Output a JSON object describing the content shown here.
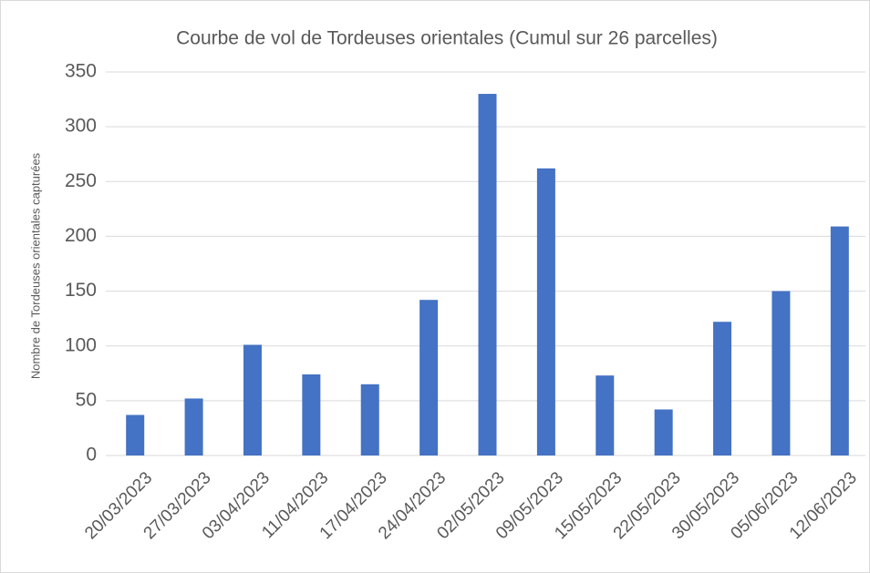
{
  "chart_data": {
    "type": "bar",
    "title": "Courbe de vol de Tordeuses orientales (Cumul sur 26 parcelles)",
    "y_label": "Nombre de Tordeuses orientales capturées",
    "categories": [
      "20/03/2023",
      "27/03/2023",
      "03/04/2023",
      "11/04/2023",
      "17/04/2023",
      "24/04/2023",
      "02/05/2023",
      "09/05/2023",
      "15/05/2023",
      "22/05/2023",
      "30/05/2023",
      "05/06/2023",
      "12/06/2023"
    ],
    "values": [
      37,
      52,
      101,
      74,
      65,
      142,
      330,
      262,
      73,
      42,
      122,
      150,
      209
    ],
    "color": "#4472c4",
    "ylim": [
      0,
      350
    ],
    "yticks": [
      0,
      50,
      100,
      150,
      200,
      250,
      300,
      350
    ],
    "grid": true
  }
}
